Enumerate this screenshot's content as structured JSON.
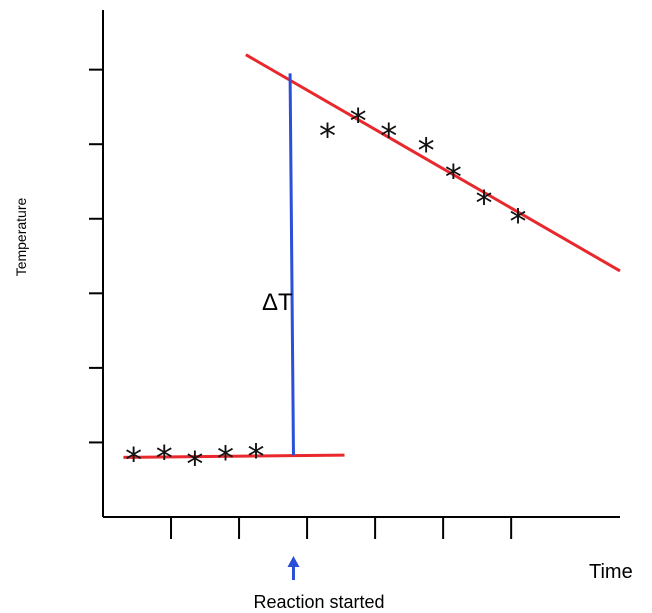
{
  "chart_data": {
    "type": "scatter",
    "xlabel": "Time",
    "ylabel": "Temperature",
    "grid": false,
    "colors": {
      "axes": "#000000",
      "fit_lines": "#e8282c",
      "delta_line": "#2a4fd8",
      "marker_arrow": "#2a4fd8",
      "points": "#111111"
    },
    "x_ticks": [
      1,
      2,
      3,
      4,
      5,
      6
    ],
    "y_ticks": [
      1,
      2,
      3,
      4,
      5,
      6
    ],
    "xlim": [
      0,
      7.6
    ],
    "ylim": [
      0,
      6.8
    ],
    "before_points": [
      {
        "x": 0.45,
        "y": 0.85
      },
      {
        "x": 0.9,
        "y": 0.88
      },
      {
        "x": 1.35,
        "y": 0.8
      },
      {
        "x": 1.8,
        "y": 0.87
      },
      {
        "x": 2.25,
        "y": 0.9
      }
    ],
    "after_points": [
      {
        "x": 3.3,
        "y": 5.2
      },
      {
        "x": 3.75,
        "y": 5.4
      },
      {
        "x": 4.2,
        "y": 5.2
      },
      {
        "x": 4.75,
        "y": 5.0
      },
      {
        "x": 5.15,
        "y": 4.65
      },
      {
        "x": 5.6,
        "y": 4.3
      },
      {
        "x": 6.1,
        "y": 4.05
      }
    ],
    "before_fit": {
      "x": [
        0.3,
        3.55
      ],
      "y": [
        0.8,
        0.83
      ]
    },
    "after_fit": {
      "x": [
        2.1,
        7.6
      ],
      "y": [
        6.2,
        3.3
      ]
    },
    "delta_line": {
      "x": [
        2.75,
        2.8
      ],
      "y": [
        0.83,
        5.95
      ]
    },
    "delta_label": "ΔT",
    "reaction_start_x": 2.8,
    "reaction_label": "Reaction started"
  }
}
